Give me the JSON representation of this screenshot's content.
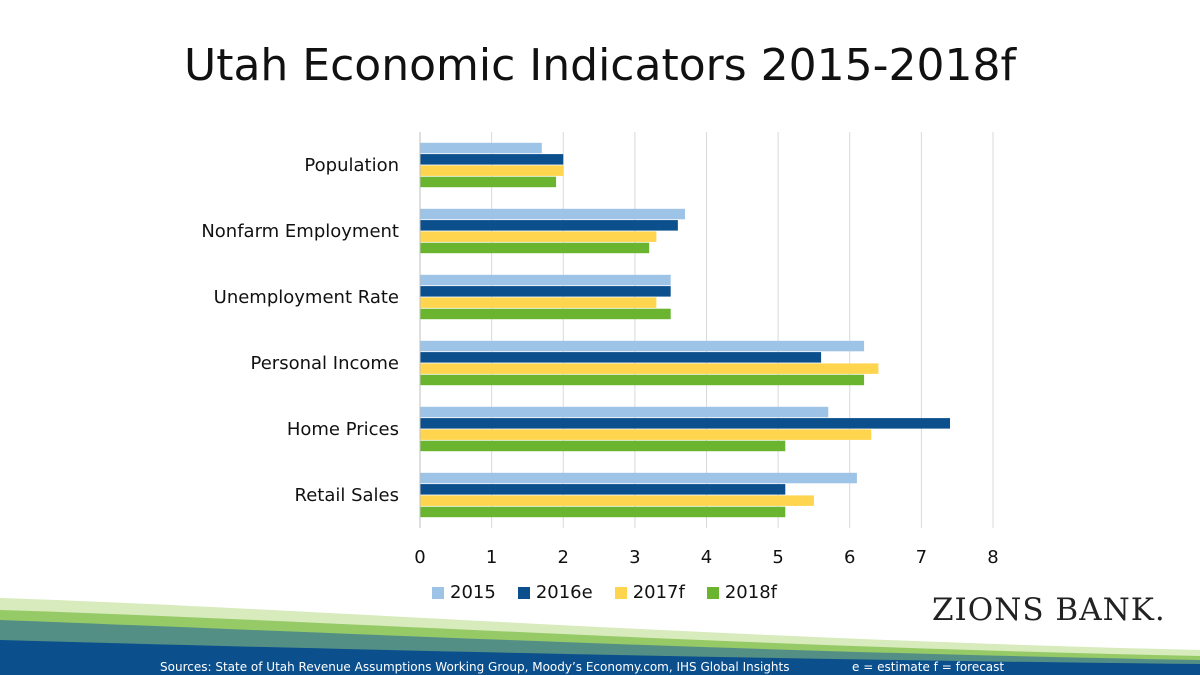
{
  "title": "Utah Economic Indicators 2015-2018f",
  "chart_data": {
    "type": "bar",
    "orientation": "horizontal",
    "title": "Utah Economic Indicators 2015-2018f",
    "categories": [
      "Population",
      "Nonfarm Employment",
      "Unemployment Rate",
      "Personal Income",
      "Home Prices",
      "Retail Sales"
    ],
    "series": [
      {
        "name": "2015",
        "color": "#9DC3E6",
        "values": [
          1.7,
          3.7,
          3.5,
          6.2,
          5.7,
          6.1
        ]
      },
      {
        "name": "2016e",
        "color": "#0B4F8C",
        "values": [
          2.0,
          3.6,
          3.5,
          5.6,
          7.4,
          5.1
        ]
      },
      {
        "name": "2017f",
        "color": "#FFD54F",
        "values": [
          2.0,
          3.3,
          3.3,
          6.4,
          6.3,
          5.5
        ]
      },
      {
        "name": "2018f",
        "color": "#6AB42F",
        "values": [
          1.9,
          3.2,
          3.5,
          6.2,
          5.1,
          5.1
        ]
      }
    ],
    "xlim": [
      0,
      8
    ],
    "xticks": [
      "0",
      "1",
      "2",
      "3",
      "4",
      "5",
      "6",
      "7",
      "8"
    ],
    "grid": true,
    "legend": "bottom"
  },
  "brand": {
    "logo_text": "ZIONS BANK."
  },
  "footer": {
    "sources": "Sources: State of Utah Revenue Assumptions Working Group, Moody’s Economy.com, IHS Global Insights",
    "note": "e = estimate f = forecast"
  }
}
